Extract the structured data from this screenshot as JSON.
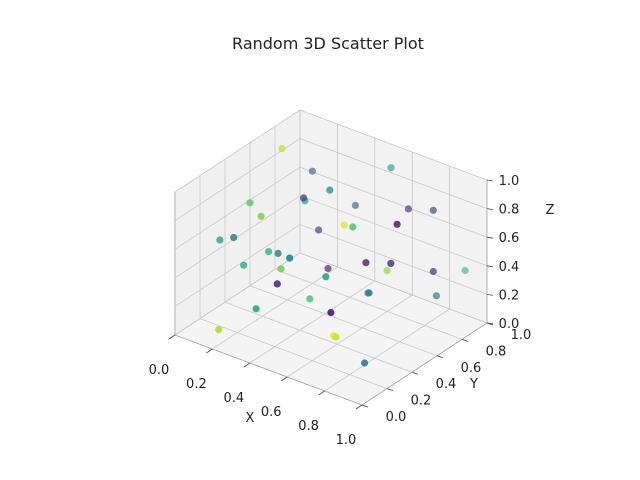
{
  "chart_data": {
    "type": "scatter",
    "title": "Random 3D Scatter Plot",
    "xlabel": "X",
    "ylabel": "Y",
    "zlabel": "Z",
    "xlim": [
      0,
      1
    ],
    "ylim": [
      0,
      1
    ],
    "zlim": [
      0,
      1
    ],
    "xticks": [
      "0.0",
      "0.2",
      "0.4",
      "0.6",
      "0.8",
      "1.0"
    ],
    "yticks": [
      "0.0",
      "0.2",
      "0.4",
      "0.6",
      "0.8",
      "1.0"
    ],
    "zticks": [
      "0.0",
      "0.2",
      "0.4",
      "0.6",
      "0.8",
      "1.0"
    ],
    "grid": true,
    "colormap": "viridis",
    "pane_color": "#f2f2f2",
    "grid_color": "#c8c8c8",
    "points": [
      {
        "x": 0.05,
        "y": 0.78,
        "z": 0.88,
        "c": 0.9
      },
      {
        "x": 0.28,
        "y": 0.62,
        "z": 0.72,
        "c": 0.6
      },
      {
        "x": 0.32,
        "y": 0.55,
        "z": 0.8,
        "c": 0.2
      },
      {
        "x": 0.08,
        "y": 0.35,
        "z": 0.52,
        "c": 0.4
      },
      {
        "x": 0.38,
        "y": 0.25,
        "z": 0.4,
        "c": 0.1
      },
      {
        "x": 0.5,
        "y": 0.1,
        "z": 0.65,
        "c": 0.8
      },
      {
        "x": 0.82,
        "y": 0.55,
        "z": 0.86,
        "c": 0.0
      },
      {
        "x": 0.9,
        "y": 0.72,
        "z": 0.9,
        "c": 0.25
      },
      {
        "x": 0.15,
        "y": 0.6,
        "z": 0.3,
        "c": 0.35
      },
      {
        "x": 0.42,
        "y": 0.45,
        "z": 0.2,
        "c": 0.7
      },
      {
        "x": 0.62,
        "y": 0.28,
        "z": 0.55,
        "c": 0.55
      },
      {
        "x": 0.7,
        "y": 0.65,
        "z": 0.42,
        "c": 0.85
      },
      {
        "x": 0.92,
        "y": 0.35,
        "z": 0.75,
        "c": 0.15
      },
      {
        "x": 0.25,
        "y": 0.85,
        "z": 0.1,
        "c": 0.05
      },
      {
        "x": 0.55,
        "y": 0.72,
        "z": 0.15,
        "c": 0.45
      },
      {
        "x": 0.12,
        "y": 0.18,
        "z": 0.62,
        "c": 0.65
      },
      {
        "x": 0.78,
        "y": 0.12,
        "z": 0.3,
        "c": 0.92
      },
      {
        "x": 0.35,
        "y": 0.92,
        "z": 0.55,
        "c": 0.3
      },
      {
        "x": 0.48,
        "y": 0.52,
        "z": 0.95,
        "c": 0.5
      },
      {
        "x": 0.66,
        "y": 0.88,
        "z": 0.7,
        "c": 0.12
      },
      {
        "x": 0.2,
        "y": 0.3,
        "z": 0.85,
        "c": 0.75
      },
      {
        "x": 0.88,
        "y": 0.2,
        "z": 0.12,
        "c": 0.4
      },
      {
        "x": 0.58,
        "y": 0.4,
        "z": 0.05,
        "c": 0.98
      },
      {
        "x": 0.02,
        "y": 0.52,
        "z": 0.2,
        "c": 0.58
      },
      {
        "x": 0.4,
        "y": 0.05,
        "z": 0.35,
        "c": 0.62
      },
      {
        "x": 0.72,
        "y": 0.45,
        "z": 0.6,
        "c": 0.08
      },
      {
        "x": 0.95,
        "y": 0.9,
        "z": 0.4,
        "c": 0.68
      },
      {
        "x": 0.3,
        "y": 0.7,
        "z": 0.48,
        "c": 0.22
      },
      {
        "x": 0.6,
        "y": 0.02,
        "z": 0.82,
        "c": 0.48
      },
      {
        "x": 0.85,
        "y": 0.82,
        "z": 0.22,
        "c": 0.35
      },
      {
        "x": 0.18,
        "y": 0.08,
        "z": 0.08,
        "c": 0.88
      },
      {
        "x": 0.52,
        "y": 0.95,
        "z": 0.88,
        "c": 0.55
      },
      {
        "x": 0.75,
        "y": 0.3,
        "z": 0.95,
        "c": 0.72
      },
      {
        "x": 0.1,
        "y": 0.95,
        "z": 0.65,
        "c": 0.28
      },
      {
        "x": 0.45,
        "y": 0.68,
        "z": 0.6,
        "c": 0.95
      },
      {
        "x": 0.98,
        "y": 0.6,
        "z": 0.58,
        "c": 0.18
      },
      {
        "x": 0.65,
        "y": 0.58,
        "z": 0.28,
        "c": 0.42
      },
      {
        "x": 0.22,
        "y": 0.42,
        "z": 0.45,
        "c": 0.66
      },
      {
        "x": 0.8,
        "y": 0.05,
        "z": 0.52,
        "c": 0.1
      },
      {
        "x": 0.36,
        "y": 0.15,
        "z": 0.92,
        "c": 0.82
      }
    ]
  }
}
